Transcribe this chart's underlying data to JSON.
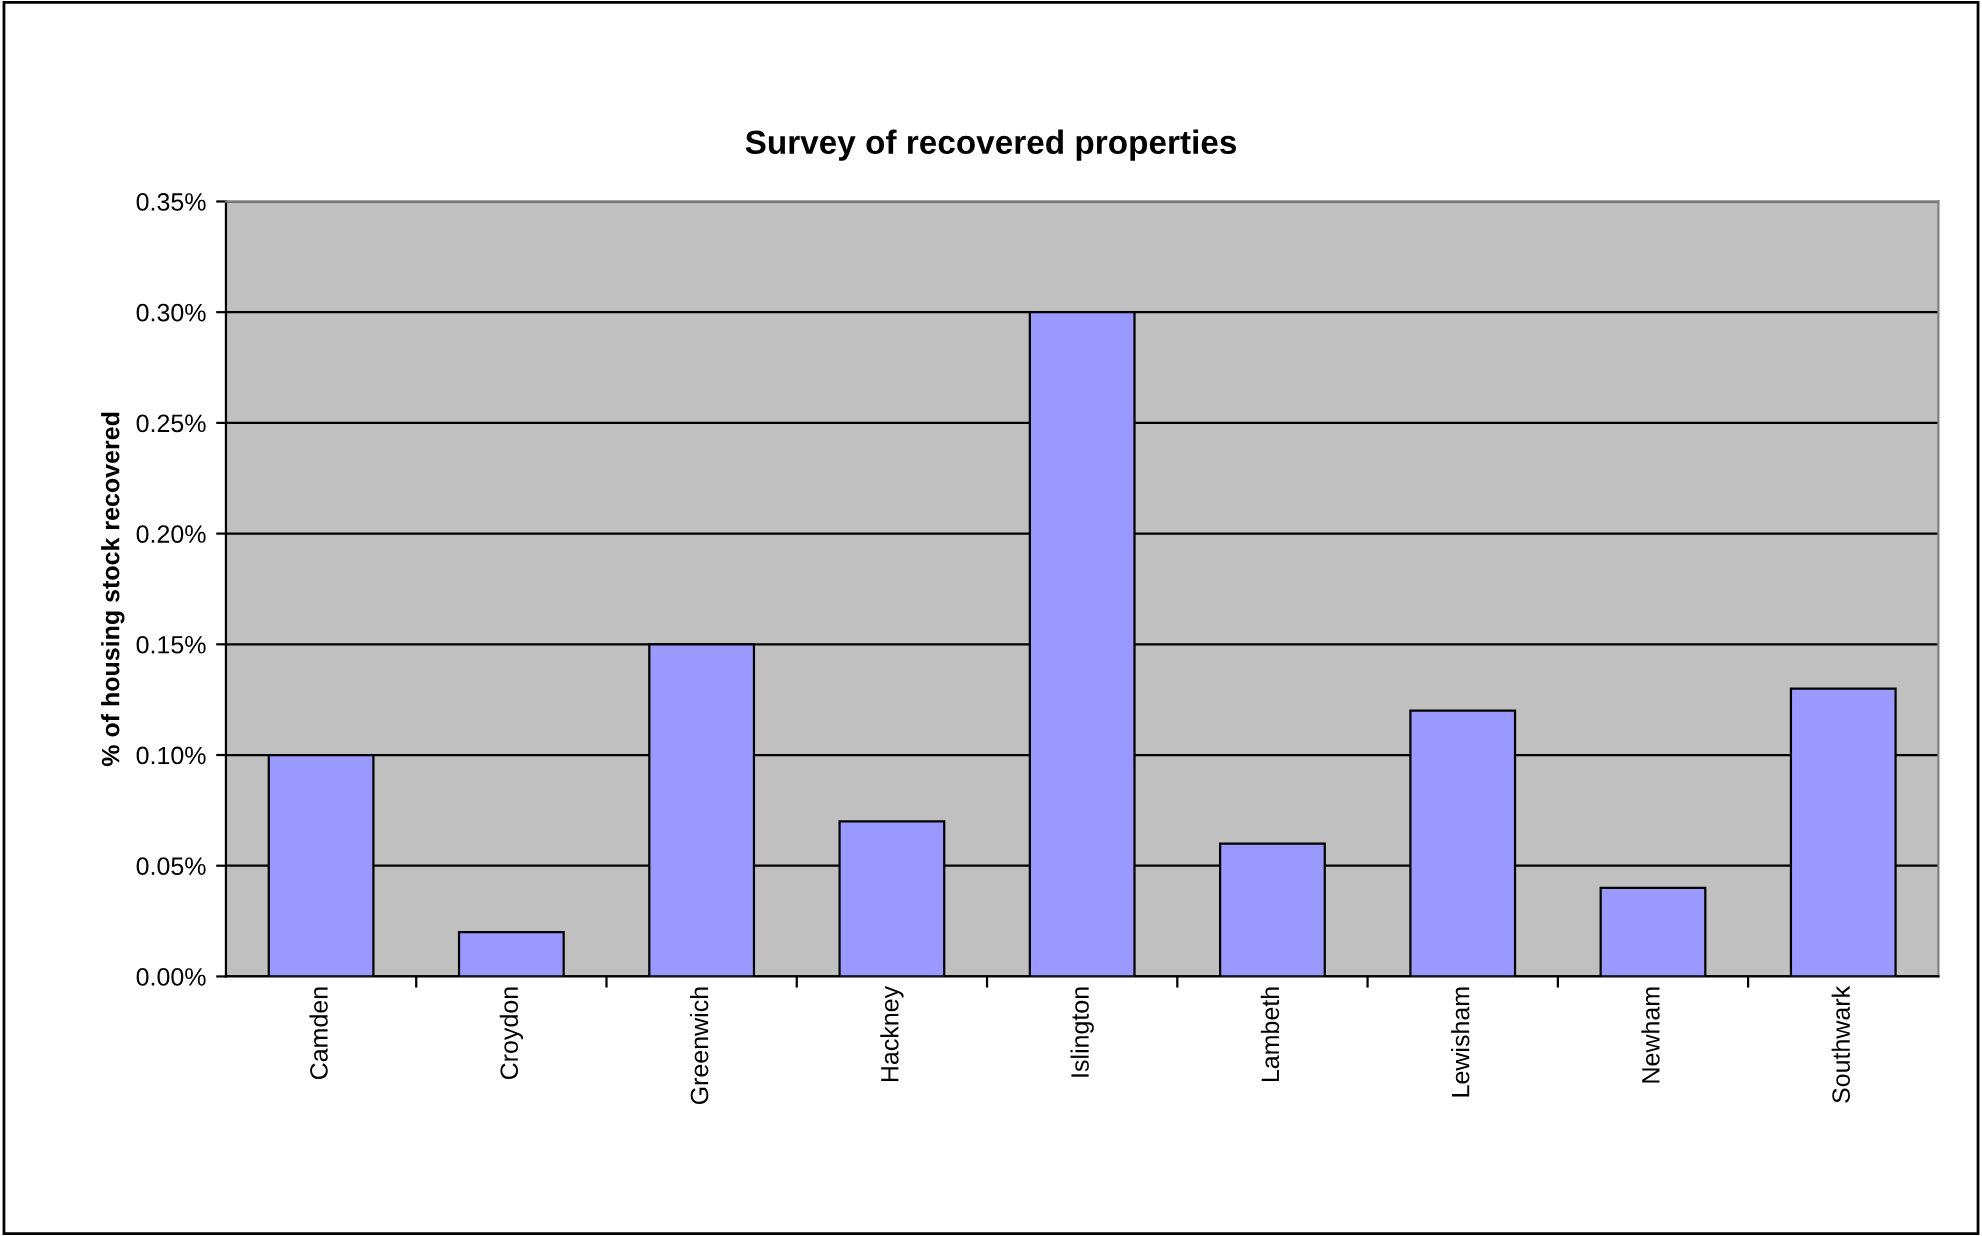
{
  "chart_data": {
    "type": "bar",
    "title": "Survey of recovered properties",
    "ylabel": "% of housing stock recovered",
    "categories": [
      "Camden",
      "Croydon",
      "Greenwich",
      "Hackney",
      "Islington",
      "Lambeth",
      "Lewisham",
      "Newham",
      "Southwark"
    ],
    "values": [
      0.1,
      0.02,
      0.15,
      0.07,
      0.3,
      0.06,
      0.12,
      0.04,
      0.13
    ],
    "color": "#9999ff",
    "ylim": [
      0,
      0.35
    ],
    "yticks": [
      {
        "value": 0,
        "label": "0.00%"
      },
      {
        "value": 0.05,
        "label": "0.05%"
      },
      {
        "value": 0.1,
        "label": "0.10%"
      },
      {
        "value": 0.15,
        "label": "0.15%"
      },
      {
        "value": 0.2,
        "label": "0.20%"
      },
      {
        "value": 0.25,
        "label": "0.25%"
      },
      {
        "value": 0.3,
        "label": "0.30%"
      },
      {
        "value": 0.35,
        "label": "0.35%"
      }
    ],
    "grid": "y"
  }
}
